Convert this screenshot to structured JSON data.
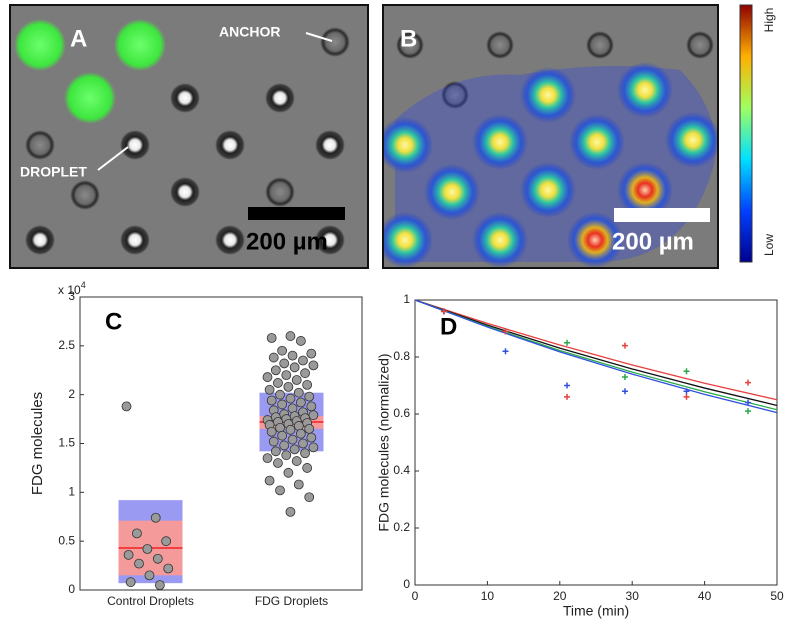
{
  "panels": {
    "A": {
      "label": "A",
      "anchor": "ANCHOR",
      "droplet": "DROPLET",
      "scale_bar": "200 µm"
    },
    "B": {
      "label": "B",
      "scale_bar": "200 µm",
      "colorbar_high": "High",
      "colorbar_low": "Low"
    }
  },
  "chart_data": [
    {
      "type": "strip",
      "label": "C",
      "ylabel": "FDG molecules",
      "ymultiplier": "x 10",
      "ymultiplier_power": "4",
      "ylim": [
        0,
        3
      ],
      "yticks": [
        0,
        0.5,
        1,
        1.5,
        2,
        2.5,
        3
      ],
      "categories": [
        "Control Droplets",
        "FDG Droplets"
      ],
      "point_color": "#9a9a9a",
      "inner_color": "#f59a9a",
      "outer_color": "#9a9af2",
      "mean_color": "#f04040",
      "groups": [
        {
          "points": [
            1.88,
            0.74,
            0.58,
            0.5,
            0.42,
            0.36,
            0.32,
            0.27,
            0.22,
            0.15,
            0.08,
            0.05
          ],
          "mean": 0.43,
          "inner": [
            0.15,
            0.71
          ],
          "outer": [
            0.07,
            0.92
          ]
        },
        {
          "points": [
            2.6,
            2.58,
            2.55,
            2.45,
            2.42,
            2.4,
            2.38,
            2.35,
            2.32,
            2.3,
            2.28,
            2.25,
            2.22,
            2.2,
            2.18,
            2.15,
            2.12,
            2.1,
            2.08,
            2.05,
            2.02,
            2.0,
            1.98,
            1.96,
            1.94,
            1.92,
            1.9,
            1.88,
            1.86,
            1.84,
            1.82,
            1.8,
            1.79,
            1.78,
            1.77,
            1.76,
            1.75,
            1.74,
            1.73,
            1.72,
            1.71,
            1.7,
            1.69,
            1.68,
            1.66,
            1.65,
            1.64,
            1.62,
            1.6,
            1.58,
            1.56,
            1.54,
            1.52,
            1.5,
            1.48,
            1.46,
            1.44,
            1.42,
            1.4,
            1.38,
            1.35,
            1.32,
            1.3,
            1.25,
            1.2,
            1.12,
            1.08,
            1.02,
            0.95,
            0.8
          ],
          "mean": 1.72,
          "inner": [
            1.65,
            1.78
          ],
          "outer": [
            1.42,
            2.02
          ]
        }
      ]
    },
    {
      "type": "line",
      "label": "D",
      "xlabel": "Time (min)",
      "ylabel": "FDG molecules (normalized)",
      "xlim": [
        0,
        50
      ],
      "xticks": [
        0,
        10,
        20,
        30,
        40,
        50
      ],
      "ylim": [
        0,
        1
      ],
      "yticks": [
        0,
        0.2,
        0.4,
        0.6,
        0.8,
        1
      ],
      "line_x": [
        0,
        10,
        20,
        30,
        40,
        50
      ],
      "lines": [
        {
          "color": "#e84040",
          "values": [
            1,
            0.918,
            0.842,
            0.772,
            0.708,
            0.65
          ]
        },
        {
          "color": "#111111",
          "values": [
            1,
            0.912,
            0.831,
            0.758,
            0.691,
            0.63
          ]
        },
        {
          "color": "#2aa84a",
          "values": [
            1,
            0.907,
            0.823,
            0.747,
            0.678,
            0.615
          ]
        },
        {
          "color": "#3050e0",
          "values": [
            1,
            0.905,
            0.818,
            0.74,
            0.669,
            0.605
          ]
        }
      ],
      "point_x": [
        4,
        12.5,
        21,
        29,
        37.5,
        46
      ],
      "points": [
        {
          "color": "#3050e0",
          "values": [
            0.96,
            0.82,
            0.7,
            0.68,
            0.68,
            0.64
          ]
        },
        {
          "color": "#2aa84a",
          "values": [
            0.96,
            0.89,
            0.85,
            0.73,
            0.75,
            0.61
          ]
        },
        {
          "color": "#e84040",
          "values": [
            0.96,
            0.89,
            0.66,
            0.84,
            0.66,
            0.71
          ]
        }
      ]
    }
  ]
}
